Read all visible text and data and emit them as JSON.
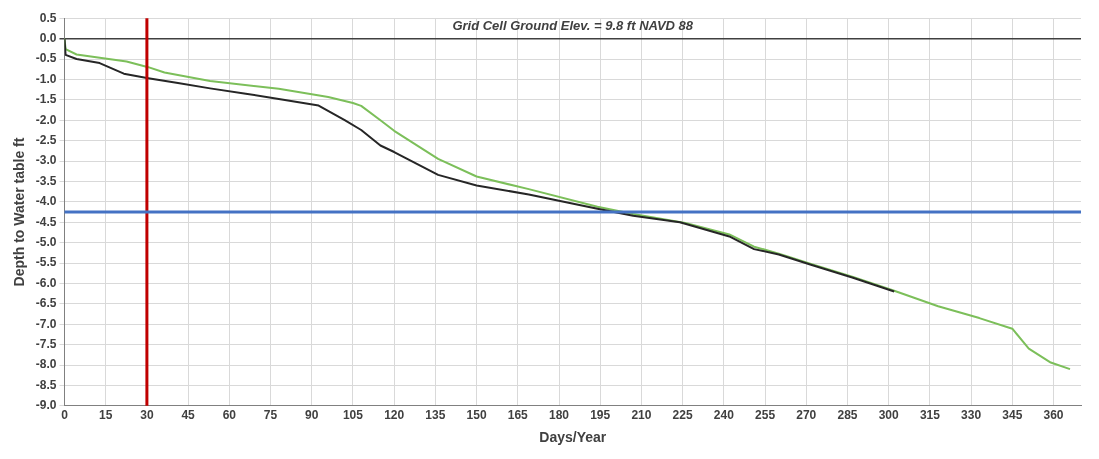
{
  "chart_data": {
    "type": "line",
    "title": "Grid Cell Ground Elev. = 9.8 ft NAVD 88",
    "xlabel": "Days/Year",
    "ylabel": "Depth to Water table ft",
    "xlim": [
      0,
      370
    ],
    "xticks": [
      0,
      15,
      30,
      45,
      60,
      75,
      90,
      105,
      120,
      135,
      150,
      165,
      180,
      195,
      210,
      225,
      240,
      255,
      270,
      285,
      300,
      315,
      330,
      345,
      360
    ],
    "ylim": [
      -9,
      0.5
    ],
    "yticks": [
      {
        "value": 0.5,
        "label": "0.5"
      },
      {
        "value": 0,
        "label": "0.0"
      },
      {
        "value": -0.5,
        "label": "-0.5"
      },
      {
        "value": -1,
        "label": "-1.0"
      },
      {
        "value": -1.5,
        "label": "-1.5"
      },
      {
        "value": -2,
        "label": "-2.0"
      },
      {
        "value": -2.5,
        "label": "-2.5"
      },
      {
        "value": -3,
        "label": "-3.0"
      },
      {
        "value": -3.5,
        "label": "-3.5"
      },
      {
        "value": -4,
        "label": "-4.0"
      },
      {
        "value": -4.5,
        "label": "-4.5"
      },
      {
        "value": -5,
        "label": "-5.0"
      },
      {
        "value": -5.5,
        "label": "-5.5"
      },
      {
        "value": -6,
        "label": "-6.0"
      },
      {
        "value": -6.5,
        "label": "-6.5"
      },
      {
        "value": -7,
        "label": "-7.0"
      },
      {
        "value": -7.5,
        "label": "-7.5"
      },
      {
        "value": -8,
        "label": "-8.0"
      },
      {
        "value": -8.5,
        "label": "-8.5"
      },
      {
        "value": -9,
        "label": "-9.0"
      }
    ],
    "grid": true,
    "marker": "none",
    "line_style": "solid",
    "series": [
      {
        "color": "#262626",
        "x": [
          0,
          0.4,
          4.4,
          12.8,
          21.6,
          30.5,
          41.3,
          53,
          66,
          78,
          92.5,
          102,
          108,
          115,
          120,
          136,
          150,
          169,
          194,
          207,
          224,
          242,
          251,
          260,
          272,
          287,
          302
        ],
        "values": [
          0,
          -0.4,
          -0.5,
          -0.6,
          -0.86,
          -0.97,
          -1.09,
          -1.22,
          -1.35,
          -1.48,
          -1.64,
          -2.0,
          -2.24,
          -2.62,
          -2.78,
          -3.34,
          -3.6,
          -3.82,
          -4.17,
          -4.34,
          -4.5,
          -4.85,
          -5.16,
          -5.29,
          -5.55,
          -5.86,
          -6.2
        ]
      },
      {
        "color": "#7cbf5a",
        "x": [
          0,
          0.4,
          4.4,
          22.6,
          30.5,
          36.4,
          53,
          78,
          96,
          105,
          108,
          115,
          120,
          136,
          150,
          169,
          194,
          207,
          226,
          242,
          251,
          260,
          272,
          287,
          302,
          318,
          333,
          345,
          351,
          359,
          366
        ],
        "values": [
          0,
          -0.26,
          -0.39,
          -0.56,
          -0.7,
          -0.83,
          -1.04,
          -1.23,
          -1.43,
          -1.58,
          -1.65,
          -2.0,
          -2.26,
          -2.95,
          -3.38,
          -3.69,
          -4.12,
          -4.3,
          -4.52,
          -4.8,
          -5.1,
          -5.27,
          -5.53,
          -5.84,
          -6.18,
          -6.56,
          -6.85,
          -7.11,
          -7.6,
          -7.94,
          -8.1
        ]
      }
    ],
    "ref_lines": [
      {
        "axis": "x",
        "value": 30,
        "color": "#c00000"
      },
      {
        "axis": "y",
        "value": -4.25,
        "color": "#4472c4"
      }
    ]
  }
}
